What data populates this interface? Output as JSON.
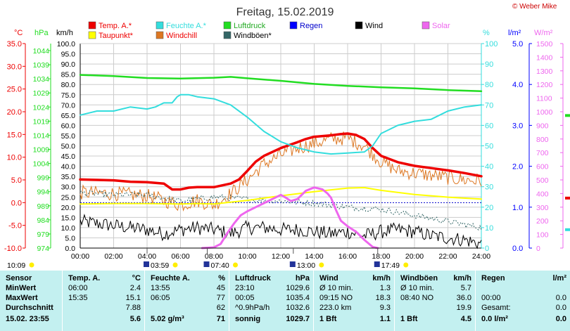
{
  "title": "Freitag, 15.02.2019",
  "copyright": "© Weber Mike",
  "legend": [
    {
      "label": "Temp. A.*",
      "color": "#ee0000",
      "text_color": "#ee0000"
    },
    {
      "label": "Feuchte A.*",
      "color": "#33dddd",
      "text_color": "#33dddd"
    },
    {
      "label": "Luftdruck",
      "color": "#22dd22",
      "text_color": "#22aa22"
    },
    {
      "label": "Regen",
      "color": "#0000ff",
      "text_color": "#0000cc"
    },
    {
      "label": "Wind",
      "color": "#000000",
      "text_color": "#000000"
    },
    {
      "label": "Solar",
      "color": "#ee66ee",
      "text_color": "#ee66ee"
    },
    {
      "label": "Taupunkt*",
      "color": "#ffff00",
      "text_color": "#ee0000"
    },
    {
      "label": "Windchill",
      "color": "#dd7722",
      "text_color": "#ee0000"
    },
    {
      "label": "Windböen*",
      "color": "#336666",
      "text_color": "#000000"
    }
  ],
  "axis_units": {
    "temp": "°C",
    "pressure": "hPa",
    "wind": "km/h",
    "humidity": "%",
    "rain": "l/m²",
    "solar": "W/m²"
  },
  "colors": {
    "temp": "#ee0000",
    "pressure": "#22dd22",
    "humidity": "#33dddd",
    "wind_axis": "#000000",
    "rain": "#0000ff",
    "solar": "#ee66ee",
    "dew": "#ffff00",
    "chill": "#dd7722",
    "gust": "#336666",
    "grid": "#cccccc",
    "table_bg": "#c3f0f0"
  },
  "chart_data": {
    "type": "line",
    "title": "Freitag, 15.02.2019",
    "x_ticks": [
      "00:00",
      "02:00",
      "04:00",
      "06:00",
      "08:00",
      "10:00",
      "12:00",
      "14:00",
      "16:00",
      "18:00",
      "20:00",
      "22:00",
      "24:00"
    ],
    "x_unit": "hours",
    "xlim": [
      0,
      24
    ],
    "axes": {
      "temp_c": {
        "min": -10,
        "max": 35,
        "ticks": [
          "35.0",
          "30.0",
          "25.0",
          "20.0",
          "15.0",
          "10.0",
          "5.0",
          "0.0",
          "-5.0",
          "-10.0"
        ]
      },
      "pressure_hpa": {
        "min": 974,
        "max": 1046.5,
        "ticks": [
          "1044",
          "1039",
          "1034",
          "1029",
          "1024",
          "1019",
          "1014",
          "1009",
          "1004",
          "999",
          "994",
          "989",
          "984",
          "979",
          "974"
        ]
      },
      "wind_kmh": {
        "min": 0,
        "max": 100,
        "ticks": [
          "100.0",
          "95.0",
          "90.0",
          "85.0",
          "80.0",
          "75.0",
          "70.0",
          "65.0",
          "60.0",
          "55.0",
          "50.0",
          "45.0",
          "40.0",
          "35.0",
          "30.0",
          "25.0",
          "20.0",
          "15.0",
          "10.0",
          "5.0",
          "0.0"
        ]
      },
      "humidity_pct": {
        "min": 0,
        "max": 100,
        "ticks": [
          "100",
          "90",
          "80",
          "70",
          "60",
          "50",
          "40",
          "30",
          "20",
          "10",
          "0"
        ]
      },
      "rain_lm2": {
        "min": 0,
        "max": 5,
        "ticks": [
          "5.0",
          "4.0",
          "3.0",
          "2.0",
          "1.0",
          "0.0"
        ]
      },
      "solar_wm2": {
        "min": 0,
        "max": 1500,
        "ticks": [
          "1500",
          "1400",
          "1300",
          "1200",
          "1100",
          "1000",
          "900",
          "800",
          "700",
          "600",
          "500",
          "400",
          "300",
          "200",
          "100",
          "0"
        ]
      }
    },
    "series": [
      {
        "name": "Temp. A.*",
        "axis": "temp_c",
        "color": "#ee0000",
        "width": 3.5,
        "points": [
          [
            0,
            5.1
          ],
          [
            1,
            5.0
          ],
          [
            2,
            4.9
          ],
          [
            3,
            4.6
          ],
          [
            4,
            4.5
          ],
          [
            5,
            4.2
          ],
          [
            5.5,
            2.9
          ],
          [
            6,
            2.9
          ],
          [
            6.5,
            3.3
          ],
          [
            7,
            3.4
          ],
          [
            8,
            3.4
          ],
          [
            9,
            4.2
          ],
          [
            9.5,
            5.1
          ],
          [
            10,
            7.0
          ],
          [
            10.5,
            9.0
          ],
          [
            11,
            10.3
          ],
          [
            12,
            12.0
          ],
          [
            13,
            13.3
          ],
          [
            13.5,
            14.0
          ],
          [
            14,
            14.5
          ],
          [
            15,
            14.8
          ],
          [
            15.6,
            15.1
          ],
          [
            16,
            15.2
          ],
          [
            16.5,
            14.9
          ],
          [
            17,
            14.0
          ],
          [
            17.5,
            12.0
          ],
          [
            18,
            10.3
          ],
          [
            19,
            8.9
          ],
          [
            20,
            8.1
          ],
          [
            21,
            7.6
          ],
          [
            22,
            7.1
          ],
          [
            23,
            6.5
          ],
          [
            24,
            5.8
          ]
        ]
      },
      {
        "name": "Taupunkt*",
        "axis": "temp_c",
        "color": "#ffff00",
        "width": 2,
        "points": [
          [
            0,
            -0.3
          ],
          [
            2,
            -0.2
          ],
          [
            4,
            -0.2
          ],
          [
            6,
            -0.3
          ],
          [
            7,
            -0.2
          ],
          [
            8,
            -0.3
          ],
          [
            10,
            0.5
          ],
          [
            12,
            1.5
          ],
          [
            14,
            2.4
          ],
          [
            16,
            3.2
          ],
          [
            17,
            3.3
          ],
          [
            18,
            2.7
          ],
          [
            20,
            1.8
          ],
          [
            22,
            1.2
          ],
          [
            24,
            0.8
          ]
        ]
      },
      {
        "name": "Feuchte A.*",
        "axis": "humidity_pct",
        "color": "#33dddd",
        "width": 2,
        "points": [
          [
            0,
            65
          ],
          [
            1,
            67
          ],
          [
            2,
            67
          ],
          [
            3,
            69
          ],
          [
            4,
            68
          ],
          [
            4.5,
            69
          ],
          [
            5,
            71
          ],
          [
            5.5,
            71
          ],
          [
            5.8,
            74
          ],
          [
            6,
            75
          ],
          [
            6.5,
            75
          ],
          [
            7,
            74
          ],
          [
            8,
            73
          ],
          [
            9,
            70
          ],
          [
            10,
            64
          ],
          [
            11,
            57
          ],
          [
            12,
            52
          ],
          [
            13,
            49
          ],
          [
            14,
            47
          ],
          [
            15,
            46
          ],
          [
            16,
            46.5
          ],
          [
            17,
            47
          ],
          [
            17.5,
            50
          ],
          [
            18,
            56
          ],
          [
            19,
            60
          ],
          [
            20,
            62
          ],
          [
            21,
            63
          ],
          [
            22,
            67
          ],
          [
            23,
            69
          ],
          [
            24,
            70
          ]
        ]
      },
      {
        "name": "Luftdruck",
        "axis": "pressure_hpa",
        "color": "#22dd22",
        "width": 2.5,
        "points": [
          [
            0,
            1035.4
          ],
          [
            2,
            1035.0
          ],
          [
            4,
            1034.3
          ],
          [
            6,
            1034.1
          ],
          [
            8,
            1034.4
          ],
          [
            9,
            1034.7
          ],
          [
            10,
            1034.2
          ],
          [
            12,
            1033.3
          ],
          [
            14,
            1032.2
          ],
          [
            16,
            1031.5
          ],
          [
            18,
            1031.0
          ],
          [
            20,
            1030.6
          ],
          [
            22,
            1030.0
          ],
          [
            24,
            1029.6
          ]
        ]
      },
      {
        "name": "Solar",
        "axis": "solar_wm2",
        "color": "#ee66ee",
        "width": 3,
        "points": [
          [
            7.3,
            0
          ],
          [
            8,
            5
          ],
          [
            8.4,
            30
          ],
          [
            8.8,
            110
          ],
          [
            9.2,
            180
          ],
          [
            9.6,
            240
          ],
          [
            10,
            270
          ],
          [
            10.5,
            300
          ],
          [
            11,
            330
          ],
          [
            11.5,
            360
          ],
          [
            12,
            390
          ],
          [
            12.3,
            370
          ],
          [
            12.6,
            345
          ],
          [
            13,
            360
          ],
          [
            13.5,
            420
          ],
          [
            14,
            445
          ],
          [
            14.5,
            430
          ],
          [
            14.8,
            400
          ],
          [
            15,
            370
          ],
          [
            15.3,
            280
          ],
          [
            15.6,
            200
          ],
          [
            16,
            160
          ],
          [
            16.5,
            120
          ],
          [
            17,
            60
          ],
          [
            17.5,
            8
          ],
          [
            17.8,
            0
          ]
        ]
      }
    ],
    "noisy_series": [
      {
        "name": "Wind",
        "axis": "wind_kmh",
        "color": "#000000",
        "width": 1,
        "base": [
          [
            0,
            13
          ],
          [
            1,
            12
          ],
          [
            2,
            11
          ],
          [
            3,
            10
          ],
          [
            4,
            9
          ],
          [
            5,
            7
          ],
          [
            6,
            9
          ],
          [
            7,
            10
          ],
          [
            8,
            9
          ],
          [
            9,
            7
          ],
          [
            10,
            10
          ],
          [
            11,
            10
          ],
          [
            12,
            9
          ],
          [
            13,
            9
          ],
          [
            14,
            8
          ],
          [
            15,
            7
          ],
          [
            16,
            8
          ],
          [
            17,
            6
          ],
          [
            18,
            8
          ],
          [
            19,
            9
          ],
          [
            20,
            8
          ],
          [
            21,
            6
          ],
          [
            22,
            5
          ],
          [
            23,
            4
          ],
          [
            24,
            2
          ]
        ],
        "amp": 3.5
      },
      {
        "name": "Windchill",
        "axis": "temp_c",
        "color": "#dd7722",
        "width": 1,
        "base": [
          [
            0,
            2.2
          ],
          [
            2,
            2.0
          ],
          [
            4,
            1.5
          ],
          [
            5,
            0.5
          ],
          [
            6,
            -0.5
          ],
          [
            7,
            0.5
          ],
          [
            8,
            -0.5
          ],
          [
            9,
            2.0
          ],
          [
            10,
            5.0
          ],
          [
            11,
            8.5
          ],
          [
            12,
            10.5
          ],
          [
            13,
            12.0
          ],
          [
            14,
            13.0
          ],
          [
            15,
            14.0
          ],
          [
            16,
            14.2
          ],
          [
            17,
            12.5
          ],
          [
            18,
            9.0
          ],
          [
            19,
            7.0
          ],
          [
            20,
            6.5
          ],
          [
            21,
            6.0
          ],
          [
            22,
            5.5
          ],
          [
            23,
            5.0
          ],
          [
            24,
            4.8
          ]
        ],
        "amp": 1.6
      },
      {
        "name": "Windböen*",
        "axis": "wind_kmh",
        "color": "#336666",
        "width": 1,
        "dashed": true,
        "base": [
          [
            0,
            27
          ],
          [
            2,
            26
          ],
          [
            4,
            26
          ],
          [
            6,
            23
          ],
          [
            8,
            25
          ],
          [
            10,
            24
          ],
          [
            12,
            23
          ],
          [
            14,
            22
          ],
          [
            16,
            20
          ],
          [
            18,
            19
          ],
          [
            20,
            16
          ],
          [
            22,
            13
          ],
          [
            24,
            10
          ]
        ],
        "amp": 1.5
      }
    ],
    "reference_lines": [
      {
        "axis": "temp_c",
        "value": 0,
        "color": "#0000cc",
        "dashed": true
      }
    ],
    "vertical_markers": [
      {
        "x": 4.0,
        "label": "03:59"
      },
      {
        "x": 7.6,
        "label": "07:40"
      },
      {
        "x": 12.75,
        "label": "13:00"
      },
      {
        "x": 17.8,
        "label": "17:49"
      }
    ],
    "right_edge_markers": [
      {
        "axis": "pressure_hpa",
        "value": 1021,
        "color": "#22dd22"
      },
      {
        "axis": "temp_c",
        "value": 1.0,
        "color": "#ee0000"
      },
      {
        "axis": "humidity_pct",
        "value": 9,
        "color": "#33dddd"
      }
    ],
    "now_label": "10:09"
  },
  "table": {
    "columns": [
      {
        "head": [
          "Sensor",
          ""
        ],
        "rows": [
          [
            "MinWert",
            ""
          ],
          [
            "MaxWert",
            ""
          ],
          [
            "Durchschnitt",
            ""
          ],
          [
            "15.02. 23:55",
            ""
          ]
        ]
      },
      {
        "head": [
          "Temp. A.",
          "°C"
        ],
        "rows": [
          [
            "06:00",
            "2.4"
          ],
          [
            "15:35",
            "15.1"
          ],
          [
            "",
            "7.88"
          ],
          [
            "",
            "5.6"
          ]
        ]
      },
      {
        "head": [
          "Feuchte A.",
          "%"
        ],
        "rows": [
          [
            "13:55",
            "45"
          ],
          [
            "06:05",
            "77"
          ],
          [
            "",
            "62"
          ],
          [
            "5.02 g/m³",
            "71"
          ]
        ]
      },
      {
        "head": [
          "Luftdruck",
          "hPa"
        ],
        "rows": [
          [
            "23:10",
            "1029.6"
          ],
          [
            "00:05",
            "1035.4"
          ],
          [
            "^0.9hPa/h",
            "1032.6"
          ],
          [
            "sonnig",
            "1029.7"
          ]
        ]
      },
      {
        "head": [
          "Wind",
          "km/h"
        ],
        "rows": [
          [
            "Ø 10 min.",
            "1.3"
          ],
          [
            "09:15   NO",
            "18.3"
          ],
          [
            "223.0 km",
            "9.3"
          ],
          [
            "1 Bft",
            "1.1"
          ]
        ]
      },
      {
        "head": [
          "Windböen",
          "km/h"
        ],
        "rows": [
          [
            "Ø 10 min.",
            "5.7"
          ],
          [
            "08:40   NO",
            "36.0"
          ],
          [
            "",
            "19.9"
          ],
          [
            "1 Bft",
            "4.5"
          ]
        ]
      },
      {
        "head": [
          "Regen",
          "l/m²"
        ],
        "rows": [
          [
            "",
            ""
          ],
          [
            "00:00",
            "0.0"
          ],
          [
            "Gesamt:",
            "0.0"
          ],
          [
            "0.0 l/m²",
            "0.0"
          ]
        ]
      }
    ]
  }
}
